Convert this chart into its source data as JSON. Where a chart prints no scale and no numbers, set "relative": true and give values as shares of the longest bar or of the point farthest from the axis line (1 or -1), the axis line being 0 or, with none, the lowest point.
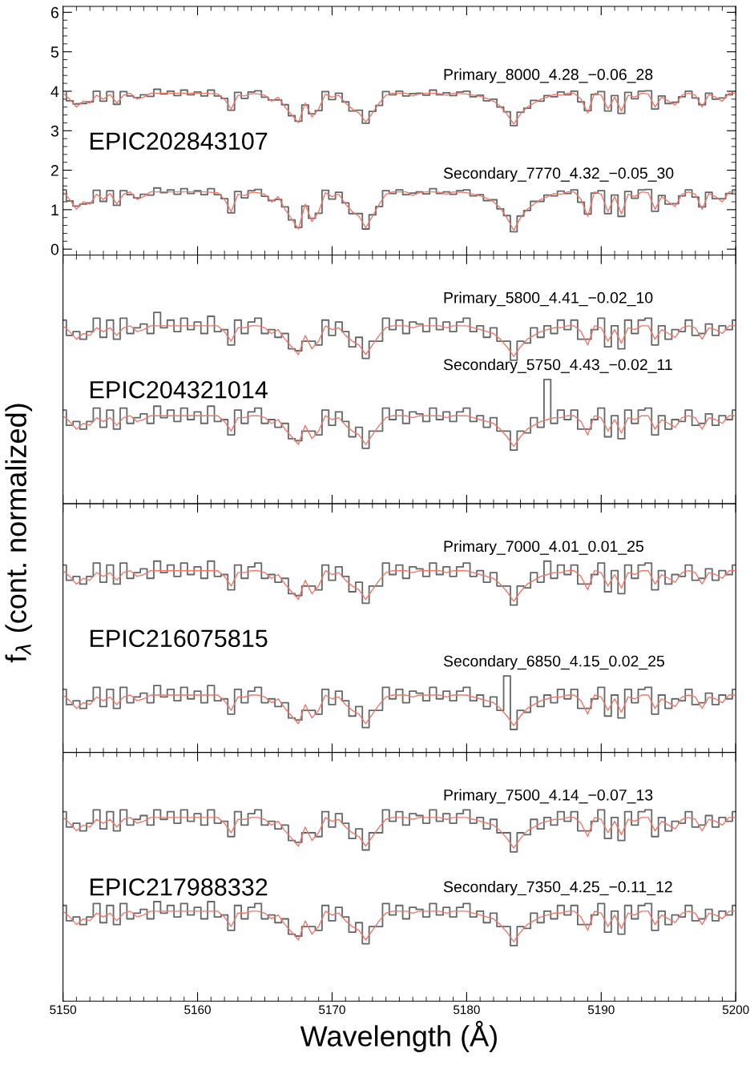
{
  "chart_data": [
    {
      "type": "line",
      "title": "EPIC202843107",
      "ylabel": "f$_{λ}$ (cont. normalized)",
      "xlim": [
        5150,
        5200
      ],
      "xticks": [
        5150,
        5160,
        5170,
        5180,
        5190,
        5200
      ],
      "ylim": [
        -0.15,
        6.15
      ],
      "yticks": [
        0,
        1,
        2,
        3,
        4,
        5,
        6
      ],
      "tick_labels": "y",
      "annotations": [
        "Primary_8000_4.28_−0.06_28",
        "Secondary_7770_4.32_−0.05_30"
      ],
      "x": [
        5150,
        5150.5,
        5151,
        5151.5,
        5152,
        5152.5,
        5153,
        5153.5,
        5154,
        5154.5,
        5155,
        5155.5,
        5156,
        5156.5,
        5157,
        5157.5,
        5158,
        5158.5,
        5159,
        5159.5,
        5160,
        5160.5,
        5161,
        5161.5,
        5162,
        5162.5,
        5163,
        5163.5,
        5164,
        5164.5,
        5165,
        5165.5,
        5166,
        5166.5,
        5167,
        5167.5,
        5168,
        5168.5,
        5169,
        5169.5,
        5170,
        5170.5,
        5171,
        5171.5,
        5172,
        5172.5,
        5173,
        5173.5,
        5174,
        5174.5,
        5175,
        5175.5,
        5176,
        5176.5,
        5177,
        5177.5,
        5178,
        5178.5,
        5179,
        5179.5,
        5180,
        5180.5,
        5181,
        5181.5,
        5182,
        5182.5,
        5183,
        5183.5,
        5184,
        5184.5,
        5185,
        5185.5,
        5186,
        5186.5,
        5187,
        5187.5,
        5188,
        5188.5,
        5189,
        5189.5,
        5190,
        5190.5,
        5191,
        5191.5,
        5192,
        5192.5,
        5193,
        5193.5,
        5194,
        5194.5,
        5195,
        5195.5,
        5196,
        5196.5,
        5197,
        5197.5,
        5198,
        5198.5,
        5199,
        5199.5,
        5200
      ],
      "series": [
        {
          "type": "step",
          "color": "#666666",
          "values": [
            4.0,
            3.76,
            3.68,
            3.69,
            3.73,
            4.0,
            3.75,
            3.99,
            3.67,
            3.99,
            3.88,
            3.84,
            3.91,
            3.87,
            4.05,
            3.93,
            4.0,
            3.89,
            4.03,
            3.91,
            3.98,
            3.88,
            4.03,
            3.88,
            3.82,
            3.52,
            3.97,
            3.82,
            3.98,
            4.01,
            3.85,
            3.78,
            3.78,
            3.66,
            3.38,
            3.24,
            3.65,
            3.43,
            3.51,
            3.99,
            3.79,
            3.95,
            3.73,
            3.5,
            3.52,
            3.19,
            3.49,
            3.64,
            3.99,
            3.91,
            4.0,
            3.88,
            3.94,
            3.95,
            3.9,
            4.03,
            3.91,
            3.96,
            3.89,
            3.98,
            4.0,
            3.86,
            3.9,
            3.76,
            3.8,
            3.6,
            3.48,
            3.13,
            3.47,
            3.57,
            3.77,
            3.75,
            3.89,
            3.86,
            3.98,
            3.91,
            4.0,
            3.73,
            3.51,
            3.92,
            3.99,
            3.5,
            3.89,
            3.44,
            3.97,
            3.81,
            4.0,
            4.01,
            3.55,
            3.88,
            3.69,
            3.72,
            3.86,
            4.0,
            3.83,
            3.66,
            3.95,
            3.8,
            3.83,
            3.91,
            4.0
          ]
        },
        {
          "type": "line",
          "color": "#f07868",
          "values": [
            3.95,
            3.8,
            3.6,
            3.75,
            3.7,
            3.9,
            3.8,
            3.92,
            3.7,
            3.9,
            3.95,
            3.8,
            3.85,
            3.95,
            3.95,
            3.95,
            3.95,
            3.95,
            3.95,
            3.95,
            3.95,
            3.95,
            3.94,
            3.93,
            3.8,
            3.55,
            3.9,
            3.88,
            3.94,
            3.93,
            3.9,
            3.75,
            3.85,
            3.6,
            3.4,
            3.2,
            3.7,
            3.35,
            3.55,
            3.93,
            3.85,
            3.9,
            3.7,
            3.55,
            3.45,
            3.22,
            3.45,
            3.7,
            3.9,
            3.95,
            3.95,
            3.95,
            3.88,
            3.93,
            3.95,
            3.95,
            3.94,
            3.9,
            3.95,
            3.94,
            3.93,
            3.9,
            3.87,
            3.82,
            3.75,
            3.62,
            3.42,
            3.17,
            3.42,
            3.6,
            3.7,
            3.8,
            3.85,
            3.92,
            3.9,
            3.95,
            3.95,
            3.8,
            3.45,
            3.95,
            3.9,
            3.55,
            3.85,
            3.5,
            3.9,
            3.85,
            3.95,
            3.93,
            3.6,
            3.85,
            3.75,
            3.65,
            3.9,
            3.95,
            3.9,
            3.6,
            3.92,
            3.85,
            3.75,
            3.95,
            3.95
          ]
        },
        {
          "type": "step",
          "color": "#666666",
          "values": [
            1.5,
            1.22,
            1.09,
            1.14,
            1.17,
            1.49,
            1.21,
            1.48,
            1.11,
            1.48,
            1.38,
            1.3,
            1.39,
            1.37,
            1.55,
            1.43,
            1.5,
            1.39,
            1.53,
            1.41,
            1.48,
            1.38,
            1.53,
            1.38,
            1.28,
            0.92,
            1.46,
            1.3,
            1.48,
            1.51,
            1.34,
            1.23,
            1.26,
            1.07,
            0.74,
            0.55,
            1.09,
            0.78,
            0.91,
            1.49,
            1.27,
            1.44,
            1.17,
            0.9,
            0.9,
            0.51,
            0.87,
            1.08,
            1.48,
            1.41,
            1.5,
            1.38,
            1.42,
            1.45,
            1.4,
            1.53,
            1.41,
            1.45,
            1.39,
            1.48,
            1.5,
            1.35,
            1.38,
            1.23,
            1.25,
            1.02,
            0.85,
            0.44,
            0.84,
            0.98,
            1.21,
            1.21,
            1.37,
            1.35,
            1.47,
            1.41,
            1.5,
            1.19,
            0.89,
            1.42,
            1.48,
            0.9,
            1.37,
            0.83,
            1.46,
            1.29,
            1.5,
            1.51,
            0.96,
            1.36,
            1.14,
            1.15,
            1.35,
            1.5,
            1.32,
            1.07,
            1.44,
            1.28,
            1.28,
            1.41,
            1.5
          ]
        },
        {
          "type": "line",
          "color": "#f07868",
          "values": [
            1.45,
            1.26,
            1.01,
            1.2,
            1.14,
            1.39,
            1.26,
            1.41,
            1.14,
            1.39,
            1.45,
            1.26,
            1.33,
            1.45,
            1.45,
            1.45,
            1.45,
            1.45,
            1.45,
            1.45,
            1.45,
            1.45,
            1.44,
            1.43,
            1.26,
            0.95,
            1.39,
            1.36,
            1.44,
            1.43,
            1.39,
            1.2,
            1.33,
            1.01,
            0.76,
            0.51,
            1.14,
            0.7,
            0.95,
            1.43,
            1.33,
            1.39,
            1.14,
            0.95,
            0.83,
            0.54,
            0.83,
            1.14,
            1.39,
            1.45,
            1.45,
            1.45,
            1.36,
            1.43,
            1.45,
            1.45,
            1.44,
            1.39,
            1.45,
            1.44,
            1.43,
            1.39,
            1.35,
            1.29,
            1.2,
            1.04,
            0.79,
            0.48,
            0.79,
            1.01,
            1.14,
            1.26,
            1.33,
            1.41,
            1.39,
            1.45,
            1.45,
            1.26,
            0.83,
            1.45,
            1.39,
            0.95,
            1.33,
            0.89,
            1.39,
            1.33,
            1.45,
            1.43,
            1.01,
            1.33,
            1.2,
            1.08,
            1.39,
            1.45,
            1.39,
            1.01,
            1.41,
            1.33,
            1.2,
            1.45,
            1.45
          ]
        }
      ]
    },
    {
      "type": "line",
      "title": "EPIC204321014",
      "relative": true,
      "xlim": [
        5150,
        5200
      ],
      "xticks": [
        5150,
        5160,
        5170,
        5180,
        5190,
        5200
      ],
      "tick_labels": false,
      "annotations": [
        "Primary_5800_4.41_−0.02_10",
        "Secondary_5750_4.43_−0.02_11"
      ],
      "x": [
        5150,
        5150.5,
        5151,
        5151.5,
        5152,
        5152.5,
        5153,
        5153.5,
        5154,
        5154.5,
        5155,
        5155.5,
        5156,
        5156.5,
        5157,
        5157.5,
        5158,
        5158.5,
        5159,
        5159.5,
        5160,
        5160.5,
        5161,
        5161.5,
        5162,
        5162.5,
        5163,
        5163.5,
        5164,
        5164.5,
        5165,
        5165.5,
        5166,
        5166.5,
        5167,
        5167.5,
        5168,
        5168.5,
        5169,
        5169.5,
        5170,
        5170.5,
        5171,
        5171.5,
        5172,
        5172.5,
        5173,
        5173.5,
        5174,
        5174.5,
        5175,
        5175.5,
        5176,
        5176.5,
        5177,
        5177.5,
        5178,
        5178.5,
        5179,
        5179.5,
        5180,
        5180.5,
        5181,
        5181.5,
        5182,
        5182.5,
        5183,
        5183.5,
        5184,
        5184.5,
        5185,
        5185.5,
        5186,
        5186.5,
        5187,
        5187.5,
        5188,
        5188.5,
        5189,
        5189.5,
        5190,
        5190.5,
        5191,
        5191.5,
        5192,
        5192.5,
        5193,
        5193.5,
        5194,
        5194.5,
        5195,
        5195.5,
        5196,
        5196.5,
        5197,
        5197.5,
        5198,
        5198.5,
        5199,
        5199.5,
        5200
      ],
      "series": [
        {
          "type": "step",
          "color": "#666666",
          "values": [
            0.96,
            0.88,
            0.9,
            0.86,
            0.9,
            0.97,
            0.87,
            0.96,
            0.86,
            0.97,
            0.89,
            0.92,
            0.94,
            0.89,
            1.0,
            0.92,
            0.96,
            0.9,
            0.97,
            0.91,
            0.95,
            0.89,
            0.98,
            0.9,
            0.91,
            0.83,
            0.96,
            0.89,
            0.95,
            0.97,
            0.89,
            0.91,
            0.87,
            0.89,
            0.81,
            0.8,
            0.85,
            0.85,
            0.83,
            0.96,
            0.88,
            0.95,
            0.9,
            0.82,
            0.87,
            0.76,
            0.85,
            0.85,
            0.97,
            0.91,
            0.96,
            0.89,
            0.95,
            0.94,
            0.9,
            0.97,
            0.91,
            0.95,
            0.9,
            0.95,
            0.97,
            0.9,
            0.93,
            0.87,
            0.92,
            0.85,
            0.85,
            0.75,
            0.85,
            0.84,
            0.92,
            0.87,
            0.93,
            0.89,
            0.96,
            0.91,
            0.96,
            0.86,
            0.86,
            0.91,
            0.97,
            0.82,
            0.93,
            0.81,
            0.96,
            0.89,
            0.96,
            0.97,
            0.83,
            0.93,
            0.86,
            0.91,
            0.9,
            0.96,
            0.88,
            0.89,
            0.94,
            0.88,
            0.93,
            0.91,
            0.96
          ]
        },
        {
          "type": "line",
          "color": "#f07868",
          "values": [
            0.93,
            0.9,
            0.86,
            0.89,
            0.88,
            0.92,
            0.9,
            0.92,
            0.88,
            0.92,
            0.93,
            0.9,
            0.91,
            0.93,
            0.93,
            0.93,
            0.93,
            0.93,
            0.93,
            0.93,
            0.93,
            0.93,
            0.93,
            0.93,
            0.9,
            0.85,
            0.92,
            0.92,
            0.93,
            0.93,
            0.92,
            0.89,
            0.91,
            0.86,
            0.82,
            0.78,
            0.88,
            0.81,
            0.85,
            0.93,
            0.91,
            0.92,
            0.88,
            0.85,
            0.83,
            0.78,
            0.83,
            0.88,
            0.92,
            0.93,
            0.93,
            0.93,
            0.92,
            0.93,
            0.93,
            0.93,
            0.93,
            0.92,
            0.93,
            0.93,
            0.93,
            0.92,
            0.91,
            0.9,
            0.89,
            0.86,
            0.82,
            0.77,
            0.82,
            0.86,
            0.88,
            0.9,
            0.91,
            0.92,
            0.92,
            0.93,
            0.93,
            0.9,
            0.83,
            0.93,
            0.92,
            0.85,
            0.91,
            0.84,
            0.92,
            0.91,
            0.93,
            0.93,
            0.86,
            0.91,
            0.89,
            0.87,
            0.92,
            0.93,
            0.92,
            0.86,
            0.92,
            0.91,
            0.89,
            0.93,
            0.93
          ]
        },
        {
          "type": "step",
          "color": "#666666",
          "values": [
            0.49,
            0.41,
            0.43,
            0.39,
            0.43,
            0.5,
            0.4,
            0.49,
            0.39,
            0.5,
            0.42,
            0.45,
            0.47,
            0.42,
            0.51,
            0.45,
            0.49,
            0.43,
            0.5,
            0.44,
            0.48,
            0.42,
            0.51,
            0.43,
            0.44,
            0.36,
            0.49,
            0.42,
            0.48,
            0.5,
            0.42,
            0.44,
            0.4,
            0.42,
            0.34,
            0.33,
            0.38,
            0.38,
            0.36,
            0.49,
            0.41,
            0.48,
            0.43,
            0.35,
            0.4,
            0.29,
            0.38,
            0.38,
            0.5,
            0.44,
            0.49,
            0.42,
            0.48,
            0.47,
            0.43,
            0.5,
            0.44,
            0.48,
            0.43,
            0.48,
            0.5,
            0.43,
            0.46,
            0.4,
            0.45,
            0.38,
            0.38,
            0.28,
            0.38,
            0.37,
            0.45,
            0.4,
            0.65,
            0.42,
            0.49,
            0.44,
            0.49,
            0.39,
            0.39,
            0.44,
            0.5,
            0.35,
            0.46,
            0.34,
            0.49,
            0.42,
            0.49,
            0.5,
            0.36,
            0.46,
            0.39,
            0.44,
            0.43,
            0.49,
            0.41,
            0.42,
            0.47,
            0.41,
            0.46,
            0.44,
            0.49
          ]
        },
        {
          "type": "line",
          "color": "#f07868",
          "values": [
            0.46,
            0.43,
            0.39,
            0.42,
            0.41,
            0.45,
            0.43,
            0.45,
            0.41,
            0.45,
            0.46,
            0.43,
            0.44,
            0.46,
            0.46,
            0.46,
            0.46,
            0.46,
            0.46,
            0.46,
            0.46,
            0.46,
            0.46,
            0.46,
            0.43,
            0.38,
            0.45,
            0.45,
            0.46,
            0.46,
            0.45,
            0.42,
            0.44,
            0.39,
            0.35,
            0.31,
            0.41,
            0.34,
            0.38,
            0.46,
            0.44,
            0.45,
            0.41,
            0.38,
            0.36,
            0.31,
            0.36,
            0.41,
            0.45,
            0.46,
            0.46,
            0.46,
            0.45,
            0.46,
            0.46,
            0.46,
            0.46,
            0.45,
            0.46,
            0.46,
            0.46,
            0.45,
            0.44,
            0.43,
            0.42,
            0.39,
            0.35,
            0.3,
            0.35,
            0.39,
            0.41,
            0.43,
            0.44,
            0.45,
            0.45,
            0.46,
            0.46,
            0.43,
            0.36,
            0.46,
            0.45,
            0.38,
            0.44,
            0.37,
            0.45,
            0.44,
            0.46,
            0.46,
            0.39,
            0.44,
            0.42,
            0.4,
            0.45,
            0.46,
            0.45,
            0.39,
            0.45,
            0.44,
            0.42,
            0.46,
            0.46
          ]
        }
      ]
    },
    {
      "type": "line",
      "title": "EPIC216075815",
      "relative": true,
      "xlim": [
        5150,
        5200
      ],
      "xticks": [
        5150,
        5160,
        5170,
        5180,
        5190,
        5200
      ],
      "tick_labels": false,
      "annotations": [
        "Primary_7000_4.01_0.01_25",
        "Secondary_6850_4.15_0.02_25"
      ],
      "x": [
        5150,
        5150.5,
        5151,
        5151.5,
        5152,
        5152.5,
        5153,
        5153.5,
        5154,
        5154.5,
        5155,
        5155.5,
        5156,
        5156.5,
        5157,
        5157.5,
        5158,
        5158.5,
        5159,
        5159.5,
        5160,
        5160.5,
        5161,
        5161.5,
        5162,
        5162.5,
        5163,
        5163.5,
        5164,
        5164.5,
        5165,
        5165.5,
        5166,
        5166.5,
        5167,
        5167.5,
        5168,
        5168.5,
        5169,
        5169.5,
        5170,
        5170.5,
        5171,
        5171.5,
        5172,
        5172.5,
        5173,
        5173.5,
        5174,
        5174.5,
        5175,
        5175.5,
        5176,
        5176.5,
        5177,
        5177.5,
        5178,
        5178.5,
        5179,
        5179.5,
        5180,
        5180.5,
        5181,
        5181.5,
        5182,
        5182.5,
        5183,
        5183.5,
        5184,
        5184.5,
        5185,
        5185.5,
        5186,
        5186.5,
        5187,
        5187.5,
        5188,
        5188.5,
        5189,
        5189.5,
        5190,
        5190.5,
        5191,
        5191.5,
        5192,
        5192.5,
        5193,
        5193.5,
        5194,
        5194.5,
        5195,
        5195.5,
        5196,
        5196.5,
        5197,
        5197.5,
        5198,
        5198.5,
        5199,
        5199.5,
        5200
      ],
      "series": [
        {
          "type": "step",
          "color": "#666666",
          "values": [
            0.98,
            0.9,
            0.92,
            0.88,
            0.92,
            0.99,
            0.89,
            0.98,
            0.88,
            0.99,
            0.91,
            0.94,
            0.96,
            0.91,
            1.0,
            0.94,
            0.98,
            0.92,
            0.99,
            0.93,
            0.97,
            0.91,
            1.0,
            0.92,
            0.93,
            0.85,
            0.98,
            0.91,
            0.97,
            0.99,
            0.91,
            0.93,
            0.89,
            0.91,
            0.83,
            0.82,
            0.87,
            0.87,
            0.85,
            0.98,
            0.9,
            0.97,
            0.92,
            0.84,
            0.89,
            0.78,
            0.87,
            0.87,
            0.99,
            0.93,
            0.98,
            0.91,
            0.97,
            0.96,
            0.92,
            0.99,
            0.93,
            0.97,
            0.92,
            0.97,
            0.99,
            0.92,
            0.95,
            0.89,
            0.94,
            0.87,
            0.87,
            0.77,
            0.87,
            0.86,
            0.94,
            0.89,
            1.0,
            0.91,
            0.98,
            0.93,
            0.98,
            0.88,
            0.88,
            0.93,
            0.99,
            0.84,
            0.95,
            0.83,
            0.98,
            0.91,
            0.98,
            0.99,
            0.85,
            0.95,
            0.88,
            0.93,
            0.92,
            0.98,
            0.9,
            0.91,
            0.96,
            0.9,
            0.95,
            0.93,
            0.98
          ]
        },
        {
          "type": "line",
          "color": "#f07868",
          "values": [
            0.95,
            0.92,
            0.88,
            0.91,
            0.9,
            0.94,
            0.92,
            0.94,
            0.9,
            0.94,
            0.95,
            0.92,
            0.93,
            0.95,
            0.95,
            0.95,
            0.95,
            0.95,
            0.95,
            0.95,
            0.95,
            0.95,
            0.95,
            0.95,
            0.92,
            0.87,
            0.94,
            0.94,
            0.95,
            0.95,
            0.94,
            0.91,
            0.93,
            0.88,
            0.84,
            0.8,
            0.9,
            0.83,
            0.87,
            0.95,
            0.93,
            0.94,
            0.9,
            0.87,
            0.85,
            0.8,
            0.85,
            0.9,
            0.94,
            0.95,
            0.95,
            0.95,
            0.94,
            0.95,
            0.95,
            0.95,
            0.95,
            0.94,
            0.95,
            0.95,
            0.95,
            0.94,
            0.93,
            0.92,
            0.91,
            0.88,
            0.84,
            0.79,
            0.84,
            0.88,
            0.9,
            0.92,
            0.93,
            0.94,
            0.94,
            0.95,
            0.95,
            0.92,
            0.85,
            0.95,
            0.94,
            0.87,
            0.93,
            0.86,
            0.94,
            0.93,
            0.95,
            0.95,
            0.88,
            0.93,
            0.91,
            0.89,
            0.94,
            0.95,
            0.94,
            0.88,
            0.94,
            0.93,
            0.91,
            0.95,
            0.95
          ]
        },
        {
          "type": "step",
          "color": "#666666",
          "values": [
            0.33,
            0.25,
            0.27,
            0.23,
            0.27,
            0.34,
            0.24,
            0.33,
            0.23,
            0.34,
            0.26,
            0.29,
            0.31,
            0.26,
            0.35,
            0.29,
            0.33,
            0.27,
            0.34,
            0.28,
            0.32,
            0.26,
            0.35,
            0.27,
            0.28,
            0.2,
            0.33,
            0.26,
            0.32,
            0.34,
            0.26,
            0.28,
            0.24,
            0.26,
            0.18,
            0.17,
            0.22,
            0.22,
            0.2,
            0.33,
            0.25,
            0.32,
            0.27,
            0.19,
            0.24,
            0.13,
            0.22,
            0.22,
            0.34,
            0.28,
            0.33,
            0.26,
            0.32,
            0.31,
            0.27,
            0.34,
            0.28,
            0.32,
            0.27,
            0.32,
            0.34,
            0.27,
            0.3,
            0.24,
            0.29,
            0.22,
            0.4,
            0.12,
            0.22,
            0.21,
            0.29,
            0.24,
            0.3,
            0.26,
            0.33,
            0.28,
            0.33,
            0.23,
            0.23,
            0.28,
            0.34,
            0.19,
            0.3,
            0.18,
            0.33,
            0.26,
            0.33,
            0.34,
            0.2,
            0.3,
            0.23,
            0.28,
            0.27,
            0.33,
            0.25,
            0.26,
            0.31,
            0.25,
            0.3,
            0.28,
            0.33
          ]
        },
        {
          "type": "line",
          "color": "#f07868",
          "values": [
            0.3,
            0.27,
            0.23,
            0.26,
            0.25,
            0.29,
            0.27,
            0.29,
            0.25,
            0.29,
            0.3,
            0.27,
            0.28,
            0.3,
            0.3,
            0.3,
            0.3,
            0.3,
            0.3,
            0.3,
            0.3,
            0.3,
            0.3,
            0.3,
            0.27,
            0.22,
            0.29,
            0.29,
            0.3,
            0.3,
            0.29,
            0.26,
            0.28,
            0.23,
            0.19,
            0.15,
            0.25,
            0.18,
            0.22,
            0.3,
            0.28,
            0.29,
            0.25,
            0.22,
            0.2,
            0.15,
            0.2,
            0.25,
            0.29,
            0.3,
            0.3,
            0.3,
            0.29,
            0.3,
            0.3,
            0.3,
            0.3,
            0.29,
            0.3,
            0.3,
            0.3,
            0.29,
            0.28,
            0.27,
            0.26,
            0.23,
            0.19,
            0.14,
            0.19,
            0.23,
            0.25,
            0.27,
            0.28,
            0.29,
            0.29,
            0.3,
            0.3,
            0.27,
            0.2,
            0.3,
            0.29,
            0.22,
            0.28,
            0.21,
            0.29,
            0.28,
            0.3,
            0.3,
            0.23,
            0.28,
            0.26,
            0.24,
            0.29,
            0.3,
            0.29,
            0.23,
            0.29,
            0.28,
            0.26,
            0.3,
            0.3
          ]
        }
      ]
    },
    {
      "type": "line",
      "title": "EPIC217988332",
      "relative": true,
      "xlabel": "Wavelength (Å)",
      "xlim": [
        5150,
        5200
      ],
      "xticks": [
        5150,
        5160,
        5170,
        5180,
        5190,
        5200
      ],
      "tick_labels": "x",
      "annotations": [
        "Primary_7500_4.14_−0.07_13",
        "Secondary_7350_4.25_−0.11_12"
      ],
      "x": [
        5150,
        5150.5,
        5151,
        5151.5,
        5152,
        5152.5,
        5153,
        5153.5,
        5154,
        5154.5,
        5155,
        5155.5,
        5156,
        5156.5,
        5157,
        5157.5,
        5158,
        5158.5,
        5159,
        5159.5,
        5160,
        5160.5,
        5161,
        5161.5,
        5162,
        5162.5,
        5163,
        5163.5,
        5164,
        5164.5,
        5165,
        5165.5,
        5166,
        5166.5,
        5167,
        5167.5,
        5168,
        5168.5,
        5169,
        5169.5,
        5170,
        5170.5,
        5171,
        5171.5,
        5172,
        5172.5,
        5173,
        5173.5,
        5174,
        5174.5,
        5175,
        5175.5,
        5176,
        5176.5,
        5177,
        5177.5,
        5178,
        5178.5,
        5179,
        5179.5,
        5180,
        5180.5,
        5181,
        5181.5,
        5182,
        5182.5,
        5183,
        5183.5,
        5184,
        5184.5,
        5185,
        5185.5,
        5186,
        5186.5,
        5187,
        5187.5,
        5188,
        5188.5,
        5189,
        5189.5,
        5190,
        5190.5,
        5191,
        5191.5,
        5192,
        5192.5,
        5193,
        5193.5,
        5194,
        5194.5,
        5195,
        5195.5,
        5196,
        5196.5,
        5197,
        5197.5,
        5198,
        5198.5,
        5199,
        5199.5,
        5200
      ],
      "series": [
        {
          "type": "step",
          "color": "#666666",
          "values": [
            0.99,
            0.91,
            0.93,
            0.89,
            0.93,
            1.0,
            0.9,
            0.99,
            0.89,
            1.0,
            0.92,
            0.95,
            0.97,
            0.92,
            1.0,
            0.95,
            0.99,
            0.93,
            1.0,
            0.94,
            0.98,
            0.92,
            1.0,
            0.93,
            0.94,
            0.86,
            0.99,
            0.92,
            0.98,
            1.0,
            0.92,
            0.94,
            0.9,
            0.92,
            0.84,
            0.83,
            0.88,
            0.88,
            0.86,
            0.99,
            0.91,
            0.98,
            0.93,
            0.85,
            0.9,
            0.79,
            0.88,
            0.88,
            1.0,
            0.94,
            0.99,
            0.92,
            0.98,
            0.97,
            0.93,
            1.0,
            0.94,
            0.98,
            0.93,
            0.98,
            1.0,
            0.93,
            0.96,
            0.9,
            0.95,
            0.88,
            0.88,
            0.78,
            0.88,
            0.87,
            0.95,
            0.9,
            0.96,
            0.92,
            0.99,
            0.94,
            0.99,
            0.89,
            0.89,
            0.94,
            1.0,
            0.85,
            0.96,
            0.84,
            0.99,
            0.92,
            0.99,
            1.0,
            0.86,
            0.96,
            0.89,
            0.94,
            0.93,
            0.99,
            0.91,
            0.92,
            0.97,
            0.91,
            0.96,
            0.94,
            0.99
          ]
        },
        {
          "type": "line",
          "color": "#f07868",
          "values": [
            0.96,
            0.93,
            0.89,
            0.92,
            0.91,
            0.95,
            0.93,
            0.95,
            0.91,
            0.95,
            0.96,
            0.93,
            0.94,
            0.96,
            0.96,
            0.96,
            0.96,
            0.96,
            0.96,
            0.96,
            0.96,
            0.96,
            0.96,
            0.96,
            0.93,
            0.88,
            0.95,
            0.95,
            0.96,
            0.96,
            0.95,
            0.92,
            0.94,
            0.89,
            0.85,
            0.81,
            0.91,
            0.84,
            0.88,
            0.96,
            0.94,
            0.95,
            0.91,
            0.88,
            0.86,
            0.81,
            0.86,
            0.91,
            0.95,
            0.96,
            0.96,
            0.96,
            0.95,
            0.96,
            0.96,
            0.96,
            0.96,
            0.95,
            0.96,
            0.96,
            0.96,
            0.95,
            0.94,
            0.93,
            0.92,
            0.89,
            0.85,
            0.8,
            0.85,
            0.89,
            0.91,
            0.93,
            0.94,
            0.95,
            0.95,
            0.96,
            0.96,
            0.93,
            0.86,
            0.96,
            0.95,
            0.88,
            0.94,
            0.87,
            0.95,
            0.94,
            0.96,
            0.96,
            0.89,
            0.94,
            0.92,
            0.9,
            0.95,
            0.96,
            0.95,
            0.89,
            0.95,
            0.94,
            0.92,
            0.96,
            0.96
          ]
        },
        {
          "type": "step",
          "color": "#666666",
          "values": [
            0.5,
            0.42,
            0.44,
            0.4,
            0.44,
            0.51,
            0.41,
            0.5,
            0.4,
            0.51,
            0.43,
            0.46,
            0.48,
            0.43,
            0.52,
            0.46,
            0.5,
            0.44,
            0.51,
            0.45,
            0.49,
            0.43,
            0.52,
            0.44,
            0.45,
            0.37,
            0.5,
            0.43,
            0.49,
            0.51,
            0.43,
            0.45,
            0.41,
            0.43,
            0.35,
            0.34,
            0.39,
            0.39,
            0.37,
            0.5,
            0.42,
            0.49,
            0.44,
            0.36,
            0.41,
            0.3,
            0.39,
            0.39,
            0.51,
            0.45,
            0.5,
            0.43,
            0.49,
            0.48,
            0.44,
            0.51,
            0.45,
            0.49,
            0.44,
            0.49,
            0.51,
            0.44,
            0.47,
            0.41,
            0.46,
            0.39,
            0.39,
            0.29,
            0.39,
            0.38,
            0.46,
            0.41,
            0.47,
            0.43,
            0.5,
            0.45,
            0.5,
            0.4,
            0.4,
            0.45,
            0.51,
            0.36,
            0.47,
            0.35,
            0.5,
            0.43,
            0.5,
            0.51,
            0.37,
            0.47,
            0.4,
            0.45,
            0.44,
            0.5,
            0.42,
            0.43,
            0.48,
            0.42,
            0.47,
            0.45,
            0.5
          ]
        },
        {
          "type": "line",
          "color": "#f07868",
          "values": [
            0.47,
            0.44,
            0.4,
            0.43,
            0.42,
            0.46,
            0.44,
            0.46,
            0.42,
            0.46,
            0.47,
            0.44,
            0.45,
            0.47,
            0.47,
            0.47,
            0.47,
            0.47,
            0.47,
            0.47,
            0.47,
            0.47,
            0.47,
            0.47,
            0.44,
            0.39,
            0.46,
            0.46,
            0.47,
            0.47,
            0.46,
            0.43,
            0.45,
            0.4,
            0.36,
            0.32,
            0.42,
            0.35,
            0.39,
            0.47,
            0.45,
            0.46,
            0.42,
            0.39,
            0.37,
            0.32,
            0.37,
            0.42,
            0.46,
            0.47,
            0.47,
            0.47,
            0.46,
            0.47,
            0.47,
            0.47,
            0.47,
            0.46,
            0.47,
            0.47,
            0.47,
            0.46,
            0.45,
            0.44,
            0.43,
            0.4,
            0.36,
            0.31,
            0.36,
            0.4,
            0.42,
            0.44,
            0.45,
            0.46,
            0.46,
            0.47,
            0.47,
            0.44,
            0.37,
            0.47,
            0.46,
            0.39,
            0.45,
            0.38,
            0.46,
            0.45,
            0.47,
            0.47,
            0.4,
            0.45,
            0.43,
            0.41,
            0.46,
            0.47,
            0.46,
            0.4,
            0.46,
            0.45,
            0.43,
            0.47,
            0.47
          ]
        }
      ]
    }
  ]
}
